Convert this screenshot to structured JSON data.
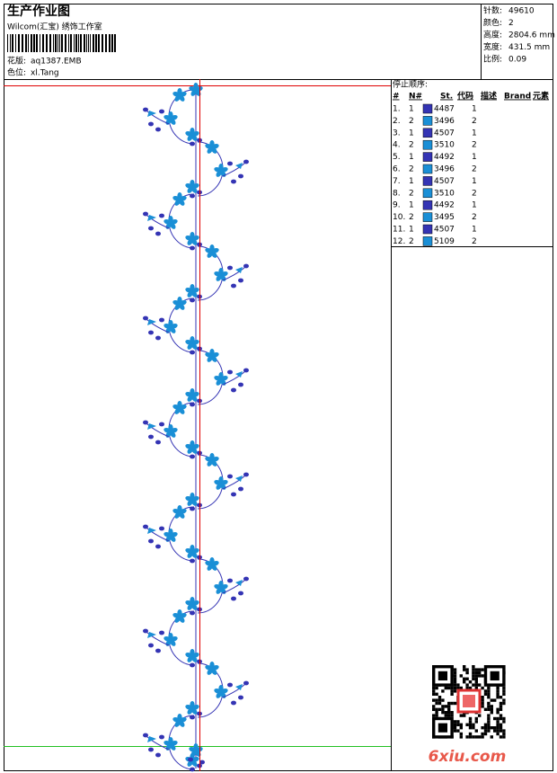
{
  "header": {
    "title": "生产作业图",
    "software": "Wilcom(汇宝) 绣饰工作室",
    "pattern_label": "花版:",
    "pattern": "aq1387.EMB",
    "color_label": "色位:",
    "color": "xl.Tang"
  },
  "stats": [
    {
      "label": "针数:",
      "value": "49610"
    },
    {
      "label": "颜色:",
      "value": "2"
    },
    {
      "label": "高度:",
      "value": "2804.6 mm"
    },
    {
      "label": "宽度:",
      "value": "431.5 mm"
    },
    {
      "label": "比例:",
      "value": "0.09"
    }
  ],
  "stop_sequence": {
    "title": "停止顺序:",
    "columns": [
      "#",
      "N#",
      "St.",
      "代码",
      "描述",
      "Brand",
      "元素"
    ],
    "rows": [
      {
        "index": "1.",
        "n": "1",
        "code": "4487",
        "st": "1",
        "color": "#3434b4"
      },
      {
        "index": "2.",
        "n": "2",
        "code": "3496",
        "st": "2",
        "color": "#1a8fd6"
      },
      {
        "index": "3.",
        "n": "1",
        "code": "4507",
        "st": "1",
        "color": "#3434b4"
      },
      {
        "index": "4.",
        "n": "2",
        "code": "3510",
        "st": "2",
        "color": "#1a8fd6"
      },
      {
        "index": "5.",
        "n": "1",
        "code": "4492",
        "st": "1",
        "color": "#3434b4"
      },
      {
        "index": "6.",
        "n": "2",
        "code": "3496",
        "st": "2",
        "color": "#1a8fd6"
      },
      {
        "index": "7.",
        "n": "1",
        "code": "4507",
        "st": "1",
        "color": "#3434b4"
      },
      {
        "index": "8.",
        "n": "2",
        "code": "3510",
        "st": "2",
        "color": "#1a8fd6"
      },
      {
        "index": "9.",
        "n": "1",
        "code": "4492",
        "st": "1",
        "color": "#3434b4"
      },
      {
        "index": "10.",
        "n": "2",
        "code": "3495",
        "st": "2",
        "color": "#1a8fd6"
      },
      {
        "index": "11.",
        "n": "1",
        "code": "4507",
        "st": "1",
        "color": "#3434b4"
      },
      {
        "index": "12.",
        "n": "2",
        "code": "5109",
        "st": "2",
        "color": "#1a8fd6"
      }
    ]
  },
  "watermark": "6xiu.com"
}
